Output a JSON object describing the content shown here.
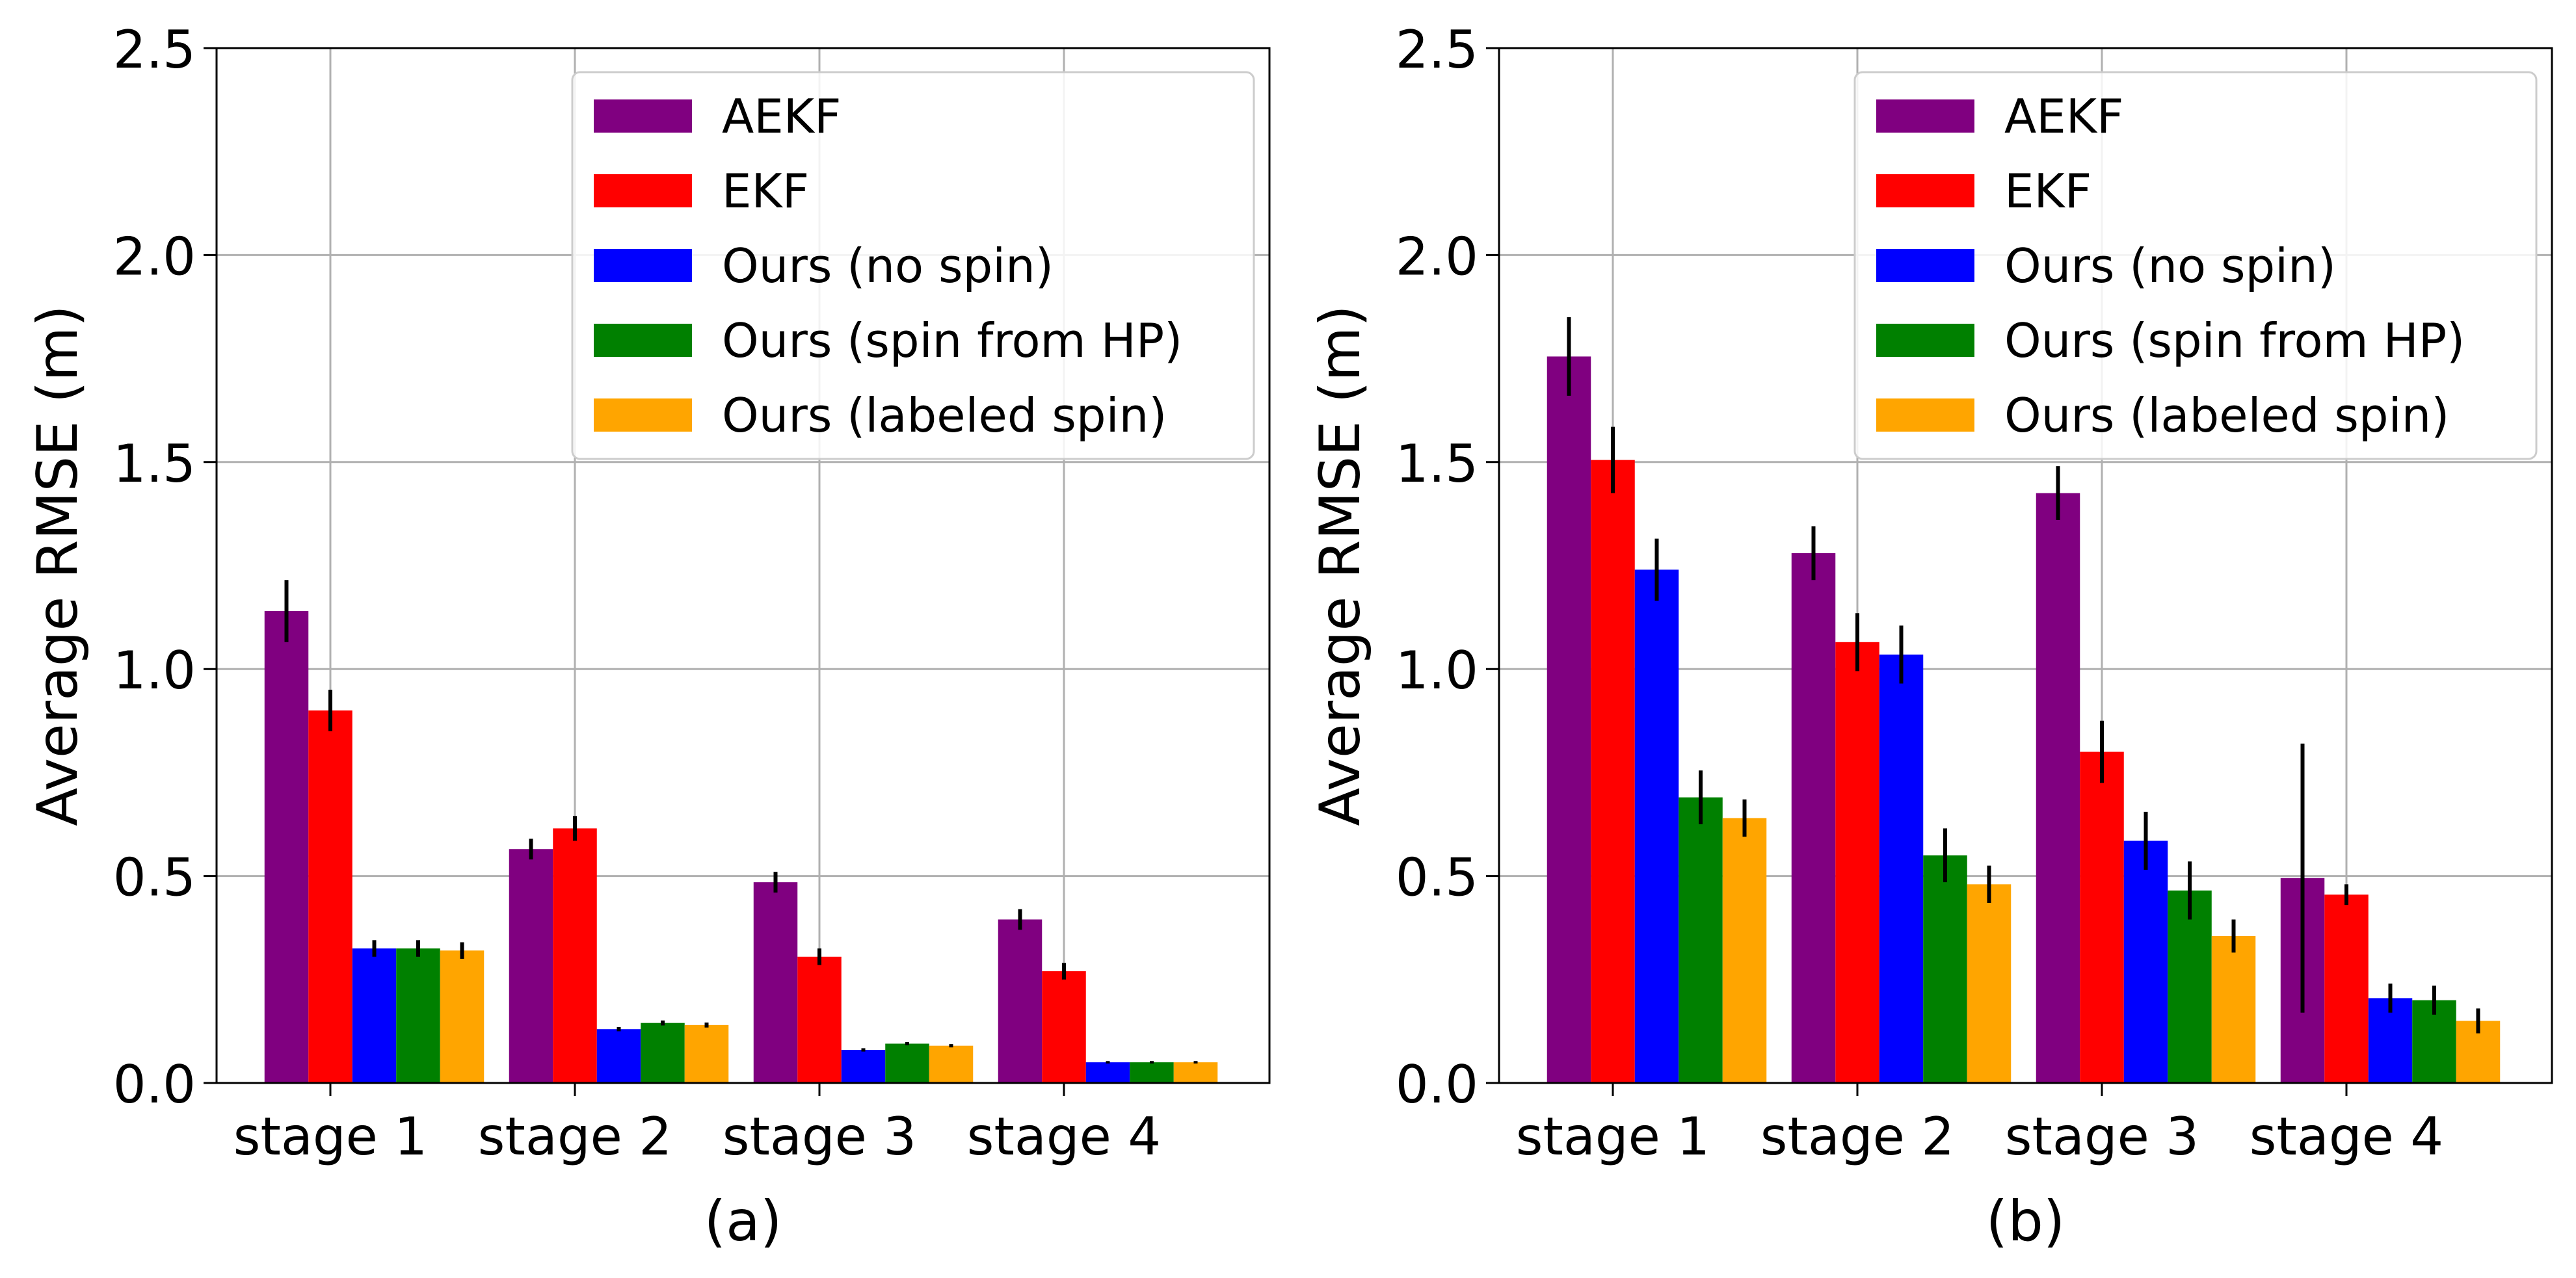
{
  "figure": {
    "colors": {
      "AEKF": "#800080",
      "EKF": "#ff0000",
      "Ours (no spin)": "#0000ff",
      "Ours (spin from HP)": "#008000",
      "Ours (labeled spin)": "#ffa500"
    }
  },
  "chart_data": [
    {
      "type": "bar",
      "caption": "(a)",
      "xlabel": "",
      "ylabel": "Average RMSE (m)",
      "ylim": [
        0,
        2.5
      ],
      "yticks": [
        "0.0",
        "0.5",
        "1.0",
        "1.5",
        "2.0",
        "2.5"
      ],
      "grid": true,
      "legend_position": "top-right",
      "categories": [
        "stage 1",
        "stage 2",
        "stage 3",
        "stage 4"
      ],
      "series": [
        {
          "name": "AEKF",
          "values": [
            1.14,
            0.565,
            0.485,
            0.395
          ],
          "errors": [
            0.075,
            0.025,
            0.025,
            0.025
          ]
        },
        {
          "name": "EKF",
          "values": [
            0.9,
            0.615,
            0.305,
            0.27
          ],
          "errors": [
            0.05,
            0.03,
            0.02,
            0.02
          ]
        },
        {
          "name": "Ours (no spin)",
          "values": [
            0.325,
            0.13,
            0.08,
            0.05
          ],
          "errors": [
            0.02,
            0.005,
            0.004,
            0.003
          ]
        },
        {
          "name": "Ours (spin from HP)",
          "values": [
            0.325,
            0.145,
            0.095,
            0.05
          ],
          "errors": [
            0.02,
            0.006,
            0.004,
            0.003
          ]
        },
        {
          "name": "Ours (labeled spin)",
          "values": [
            0.32,
            0.14,
            0.09,
            0.05
          ],
          "errors": [
            0.02,
            0.006,
            0.004,
            0.003
          ]
        }
      ]
    },
    {
      "type": "bar",
      "caption": "(b)",
      "xlabel": "",
      "ylabel": "Average RMSE (m)",
      "ylim": [
        0,
        2.5
      ],
      "yticks": [
        "0.0",
        "0.5",
        "1.0",
        "1.5",
        "2.0",
        "2.5"
      ],
      "grid": true,
      "legend_position": "top-right",
      "categories": [
        "stage 1",
        "stage 2",
        "stage 3",
        "stage 4"
      ],
      "series": [
        {
          "name": "AEKF",
          "values": [
            1.755,
            1.28,
            1.425,
            0.495
          ],
          "errors": [
            0.095,
            0.065,
            0.065,
            0.325
          ]
        },
        {
          "name": "EKF",
          "values": [
            1.505,
            1.065,
            0.8,
            0.455
          ],
          "errors": [
            0.08,
            0.07,
            0.075,
            0.025
          ]
        },
        {
          "name": "Ours (no spin)",
          "values": [
            1.24,
            1.035,
            0.585,
            0.205
          ],
          "errors": [
            0.075,
            0.07,
            0.07,
            0.035
          ]
        },
        {
          "name": "Ours (spin from HP)",
          "values": [
            0.69,
            0.55,
            0.465,
            0.2
          ],
          "errors": [
            0.065,
            0.065,
            0.07,
            0.035
          ]
        },
        {
          "name": "Ours (labeled spin)",
          "values": [
            0.64,
            0.48,
            0.355,
            0.15
          ],
          "errors": [
            0.045,
            0.045,
            0.04,
            0.03
          ]
        }
      ]
    }
  ]
}
